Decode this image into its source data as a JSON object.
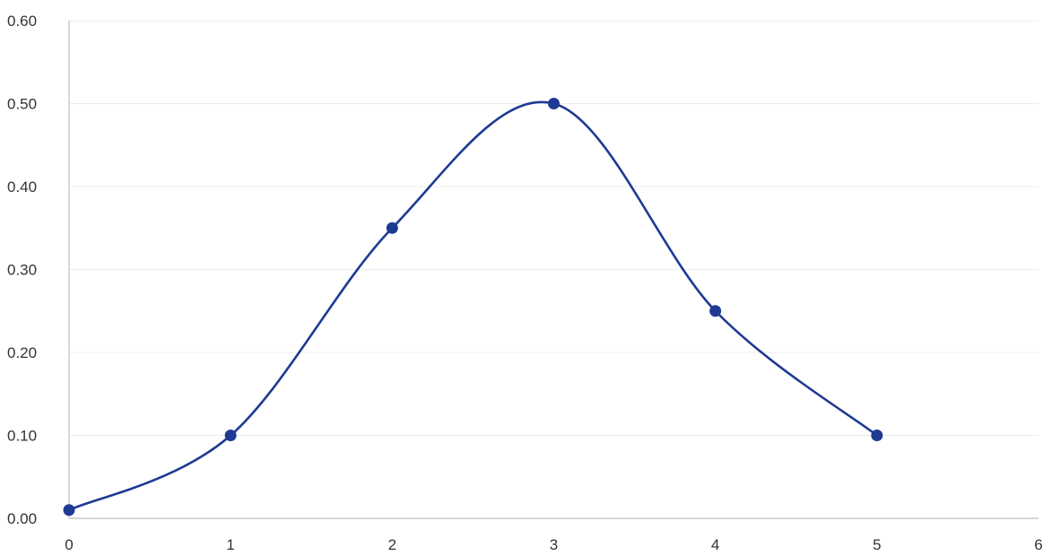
{
  "chart_data": {
    "type": "scatter",
    "style": "smooth-line-with-markers",
    "title": "",
    "xlabel": "",
    "ylabel": "",
    "xlim": [
      0,
      6
    ],
    "ylim": [
      0,
      0.6
    ],
    "x_ticks": [
      "0",
      "1",
      "2",
      "3",
      "4",
      "5",
      "6"
    ],
    "y_ticks": [
      "0.00",
      "0.10",
      "0.20",
      "0.30",
      "0.40",
      "0.50",
      "0.60"
    ],
    "grid": true,
    "legend": "none",
    "series": [
      {
        "x": [
          0,
          1,
          2,
          3,
          4,
          5
        ],
        "y": [
          0.01,
          0.1,
          0.35,
          0.5,
          0.25,
          0.1
        ],
        "color": "#1f3a93"
      }
    ]
  }
}
